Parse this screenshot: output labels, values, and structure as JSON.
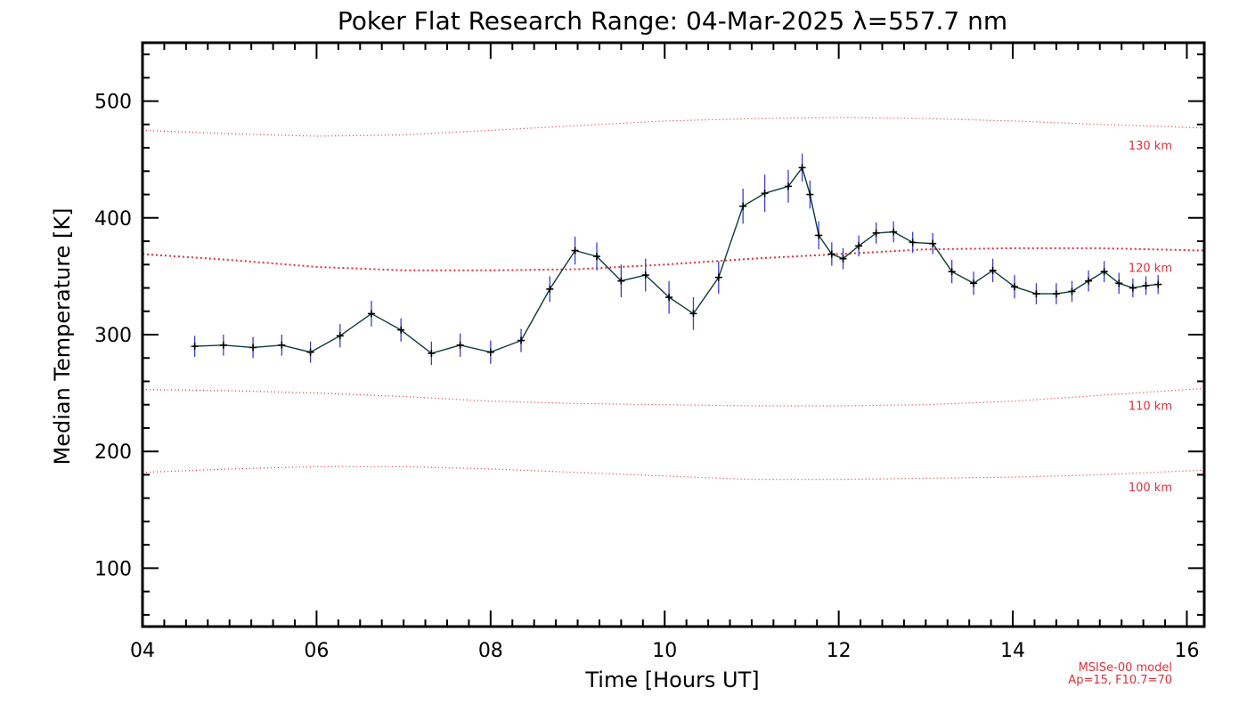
{
  "chart_data": {
    "type": "line",
    "title": "Poker Flat Research Range: 04-Mar-2025 λ=557.7 nm",
    "xlabel": "Time [Hours UT]",
    "ylabel": "Median Temperature [K]",
    "xlim": [
      4,
      16.2
    ],
    "ylim": [
      50,
      550
    ],
    "x_ticks": [
      4,
      6,
      8,
      10,
      12,
      14,
      16
    ],
    "x_tick_labels": [
      "04",
      "06",
      "08",
      "10",
      "12",
      "14",
      "16"
    ],
    "y_ticks": [
      100,
      200,
      300,
      400,
      500
    ],
    "y_tick_labels": [
      "100",
      "200",
      "300",
      "400",
      "500"
    ],
    "grid": false,
    "series": [
      {
        "color": "#0b3b3b",
        "error_color": "#3b3bd6",
        "x": [
          4.6,
          4.93,
          5.27,
          5.6,
          5.93,
          6.27,
          6.63,
          6.97,
          7.32,
          7.65,
          8.0,
          8.35,
          8.68,
          8.97,
          9.22,
          9.5,
          9.78,
          10.05,
          10.33,
          10.62,
          10.9,
          11.15,
          11.42,
          11.58,
          11.67,
          11.77,
          11.92,
          12.05,
          12.23,
          12.43,
          12.63,
          12.85,
          13.08,
          13.3,
          13.55,
          13.77,
          14.02,
          14.27,
          14.5,
          14.68,
          14.87,
          15.05,
          15.22,
          15.38,
          15.53,
          15.67
        ],
        "y": [
          290,
          291,
          289,
          291,
          285,
          299,
          318,
          304,
          284,
          291,
          285,
          295,
          339,
          372,
          367,
          346,
          351,
          332,
          318,
          349,
          410,
          421,
          427,
          443,
          420,
          385,
          369,
          365,
          376,
          387,
          388,
          379,
          378,
          354,
          344,
          355,
          341,
          335,
          335,
          337,
          346,
          354,
          344,
          340,
          342,
          343
        ],
        "err": [
          9,
          9,
          9,
          9,
          9,
          10,
          11,
          10,
          10,
          10,
          10,
          10,
          11,
          12,
          12,
          14,
          14,
          14,
          14,
          14,
          15,
          16,
          14,
          12,
          12,
          12,
          10,
          9,
          9,
          9,
          9,
          9,
          9,
          10,
          10,
          10,
          10,
          9,
          9,
          9,
          9,
          9,
          9,
          8,
          8,
          8
        ]
      }
    ],
    "model_curves": [
      {
        "label": "130 km",
        "color": "#e0303a",
        "weight": 1,
        "x": [
          4,
          5,
          6,
          7,
          8,
          9,
          10,
          11,
          12,
          13,
          14,
          15,
          16.2
        ],
        "y": [
          475,
          472,
          470,
          471,
          475,
          479,
          483,
          485,
          486,
          485,
          483,
          480,
          477
        ]
      },
      {
        "label": "120 km",
        "color": "#e0303a",
        "weight": 2,
        "x": [
          4,
          5,
          6,
          7,
          8,
          9,
          10,
          11,
          12,
          13,
          14,
          15,
          16.2
        ],
        "y": [
          369,
          364,
          358,
          355,
          355,
          356,
          360,
          365,
          369,
          373,
          374,
          374,
          372
        ]
      },
      {
        "label": "110 km",
        "color": "#e0303a",
        "weight": 1,
        "x": [
          4,
          5,
          6,
          7,
          8,
          9,
          10,
          11,
          12,
          13,
          14,
          15,
          16.2
        ],
        "y": [
          253,
          252,
          250,
          247,
          243,
          241,
          240,
          239,
          239,
          240,
          243,
          248,
          254
        ]
      },
      {
        "label": "100 km",
        "color": "#e0303a",
        "weight": 1,
        "x": [
          4,
          5,
          6,
          7,
          8,
          9,
          10,
          11,
          12,
          13,
          14,
          15,
          16.2
        ],
        "y": [
          182,
          185,
          187,
          187,
          185,
          182,
          179,
          176,
          176,
          177,
          178,
          180,
          184
        ]
      }
    ],
    "footer": {
      "line1": "MSISe-00 model",
      "line2": "Ap=15, F10.7=70"
    }
  }
}
